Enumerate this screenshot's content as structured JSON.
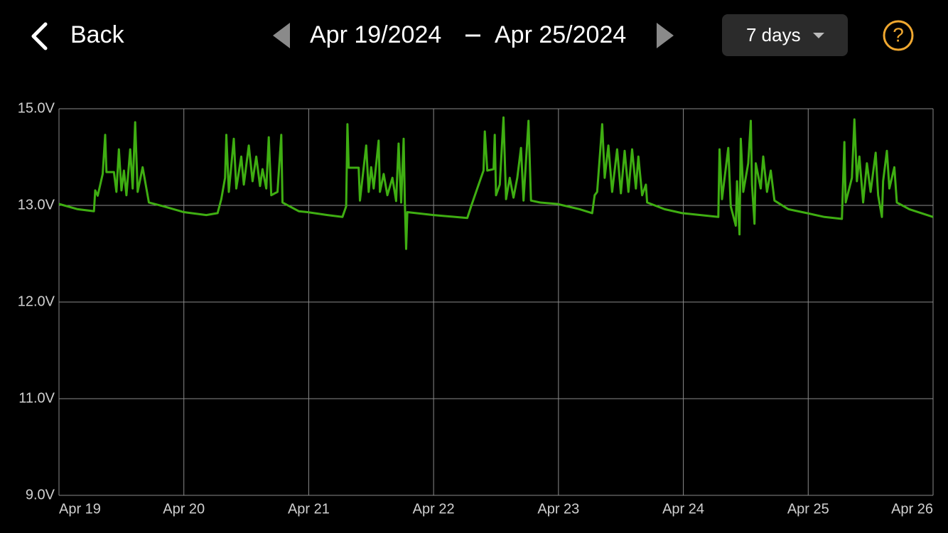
{
  "header": {
    "back": "Back",
    "start_date": "Apr 19/2024",
    "end_date": "Apr 25/2024",
    "range": "7 days",
    "help": "?"
  },
  "chart_data": {
    "type": "line",
    "color": "#3fae12",
    "grid": true,
    "ylim": [
      9,
      15
    ],
    "yticks": [
      {
        "value": 9,
        "label": "9.0V"
      },
      {
        "value": 11,
        "label": "11.0V"
      },
      {
        "value": 12,
        "label": "12.0V"
      },
      {
        "value": 13,
        "label": "13.0V"
      },
      {
        "value": 15,
        "label": "15.0V"
      }
    ],
    "xlim": [
      19,
      26
    ],
    "xticks": [
      {
        "value": 19,
        "label": "Apr 19"
      },
      {
        "value": 20,
        "label": "Apr 20"
      },
      {
        "value": 21,
        "label": "Apr 21"
      },
      {
        "value": 22,
        "label": "Apr 22"
      },
      {
        "value": 23,
        "label": "Apr 23"
      },
      {
        "value": 24,
        "label": "Apr 24"
      },
      {
        "value": 25,
        "label": "Apr 25"
      },
      {
        "value": 26,
        "label": "Apr 26"
      }
    ],
    "x": [
      19.0,
      19.15,
      19.28,
      19.29,
      19.31,
      19.35,
      19.37,
      19.38,
      19.44,
      19.46,
      19.48,
      19.5,
      19.52,
      19.54,
      19.57,
      19.59,
      19.61,
      19.63,
      19.67,
      19.69,
      19.72,
      19.84,
      20.0,
      20.18,
      20.27,
      20.3,
      20.33,
      20.34,
      20.36,
      20.4,
      20.42,
      20.46,
      20.48,
      20.52,
      20.55,
      20.58,
      20.61,
      20.63,
      20.66,
      20.68,
      20.7,
      20.75,
      20.78,
      20.79,
      20.92,
      20.99,
      21.15,
      21.27,
      21.3,
      21.31,
      21.32,
      21.4,
      21.41,
      21.46,
      21.48,
      21.5,
      21.52,
      21.56,
      21.57,
      21.6,
      21.63,
      21.67,
      21.7,
      21.72,
      21.74,
      21.76,
      21.77,
      21.78,
      21.79,
      22.0,
      22.27,
      22.3,
      22.35,
      22.4,
      22.41,
      22.43,
      22.48,
      22.49,
      22.5,
      22.53,
      22.56,
      22.58,
      22.61,
      22.64,
      22.67,
      22.7,
      22.72,
      22.76,
      22.78,
      22.85,
      22.99,
      23.17,
      23.27,
      23.29,
      23.31,
      23.35,
      23.37,
      23.4,
      23.43,
      23.47,
      23.5,
      23.53,
      23.56,
      23.59,
      23.62,
      23.64,
      23.67,
      23.7,
      23.71,
      23.85,
      23.99,
      24.28,
      24.29,
      24.31,
      24.36,
      24.38,
      24.42,
      24.43,
      24.45,
      24.46,
      24.48,
      24.52,
      24.54,
      24.55,
      24.57,
      24.58,
      24.62,
      24.64,
      24.67,
      24.7,
      24.73,
      24.84,
      24.99,
      25.13,
      25.27,
      25.29,
      25.3,
      25.35,
      25.37,
      25.39,
      25.41,
      25.44,
      25.47,
      25.5,
      25.54,
      25.56,
      25.59,
      25.6,
      25.63,
      25.65,
      25.69,
      25.71,
      25.81,
      26.0
    ],
    "values": [
      13.03,
      12.96,
      12.94,
      13.31,
      13.2,
      13.65,
      14.46,
      13.69,
      13.69,
      13.28,
      14.16,
      13.31,
      13.72,
      13.21,
      14.16,
      13.35,
      14.72,
      13.28,
      13.79,
      13.5,
      13.06,
      12.99,
      12.93,
      12.9,
      12.92,
      13.13,
      13.57,
      14.46,
      13.28,
      14.38,
      13.35,
      14.01,
      13.43,
      14.24,
      13.5,
      14.01,
      13.4,
      13.75,
      13.35,
      14.41,
      13.21,
      13.28,
      14.46,
      13.06,
      12.94,
      12.93,
      12.9,
      12.88,
      12.99,
      14.68,
      13.78,
      13.78,
      13.1,
      14.24,
      13.28,
      13.79,
      13.35,
      14.34,
      13.28,
      13.65,
      13.21,
      13.57,
      13.09,
      14.28,
      13.06,
      14.38,
      13.06,
      12.55,
      12.93,
      12.9,
      12.87,
      12.99,
      13.35,
      13.72,
      14.53,
      13.72,
      13.75,
      14.46,
      13.21,
      13.43,
      14.82,
      13.13,
      13.57,
      13.16,
      13.57,
      14.19,
      13.1,
      14.75,
      13.1,
      13.06,
      13.03,
      12.96,
      12.92,
      13.21,
      13.28,
      14.68,
      13.57,
      14.24,
      13.28,
      14.16,
      13.25,
      14.13,
      13.28,
      14.16,
      13.35,
      14.01,
      13.21,
      13.43,
      13.06,
      12.96,
      12.92,
      12.88,
      14.16,
      13.13,
      14.19,
      12.99,
      12.79,
      13.5,
      12.7,
      14.38,
      13.28,
      13.87,
      14.75,
      13.43,
      12.81,
      13.87,
      13.35,
      14.01,
      13.28,
      13.72,
      13.1,
      12.96,
      12.92,
      12.88,
      12.86,
      14.31,
      13.06,
      13.57,
      14.78,
      13.5,
      14.01,
      13.06,
      13.87,
      13.28,
      14.09,
      13.21,
      12.88,
      13.5,
      14.13,
      13.35,
      13.79,
      13.06,
      12.96,
      12.88
    ]
  }
}
